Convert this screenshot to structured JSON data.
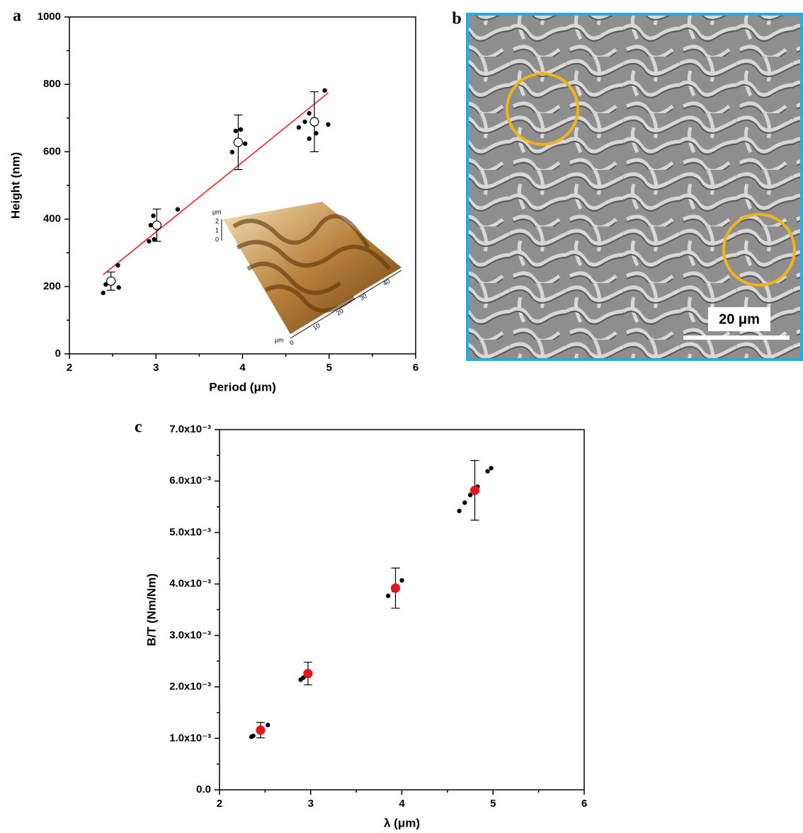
{
  "chart_data": [
    {
      "type": "scatter",
      "panel_label": "a",
      "xlabel": "Period (μm)",
      "ylabel": "Height (nm)",
      "xlim": [
        2,
        6
      ],
      "xticks": [
        2,
        3,
        4,
        5,
        6
      ],
      "ylim": [
        0,
        1000
      ],
      "yticks": [
        0,
        200,
        400,
        600,
        800,
        1000
      ],
      "points": {
        "color": "#000000",
        "x": [
          2.39,
          2.42,
          2.56,
          2.57,
          2.94,
          2.97,
          2.92,
          2.98,
          3.25,
          3.88,
          3.92,
          3.98,
          4.03,
          4.65,
          4.72,
          4.77,
          4.77,
          4.85,
          4.95,
          4.99
        ],
        "y": [
          181,
          206,
          263,
          197,
          382,
          410,
          334,
          340,
          429,
          599,
          662,
          666,
          624,
          672,
          689,
          714,
          639,
          655,
          782,
          681
        ]
      },
      "means": {
        "fill": "#ffffff",
        "stroke": "#000000",
        "x": [
          2.48,
          3.01,
          3.95,
          4.83
        ],
        "y": [
          216,
          382,
          628,
          689
        ],
        "yerr": [
          27,
          48,
          81,
          89
        ]
      },
      "fit": {
        "color": "#e8141c",
        "x": [
          2.39,
          4.99
        ],
        "y": [
          235,
          775
        ]
      },
      "inset": {
        "unit": "μm",
        "z_ticks": [
          0,
          1,
          2
        ],
        "xy_ticks": [
          0,
          10,
          20,
          30,
          40
        ]
      }
    },
    {
      "type": "scatter",
      "panel_label": "c",
      "xlabel": "λ (μm)",
      "ylabel": "B/T (Nm/Nm)",
      "xlim": [
        2,
        6
      ],
      "xticks": [
        2,
        3,
        4,
        5,
        6
      ],
      "ylim": [
        0,
        0.007
      ],
      "yticks": [
        {
          "value": 0,
          "label": "0.0"
        },
        {
          "value": 0.001,
          "label": "1.0x10⁻³"
        },
        {
          "value": 0.002,
          "label": "2.0x10⁻³"
        },
        {
          "value": 0.003,
          "label": "3.0x10⁻³"
        },
        {
          "value": 0.004,
          "label": "4.0x10⁻³"
        },
        {
          "value": 0.005,
          "label": "5.0x10⁻³"
        },
        {
          "value": 0.006,
          "label": "6.0x10⁻³"
        },
        {
          "value": 0.007,
          "label": "7.0x10⁻³"
        }
      ],
      "points": {
        "color": "#000000",
        "x": [
          2.35,
          2.37,
          2.53,
          2.89,
          2.92,
          3.85,
          3.91,
          4.0,
          4.63,
          4.69,
          4.75,
          4.83,
          4.94,
          4.98
        ],
        "y": [
          0.00103,
          0.00105,
          0.00126,
          0.00214,
          0.00218,
          0.00377,
          0.00388,
          0.00407,
          0.00542,
          0.00558,
          0.00573,
          0.00589,
          0.00619,
          0.00625
        ]
      },
      "means": {
        "fill": "#e8141c",
        "stroke": "#e8141c",
        "x": [
          2.45,
          2.97,
          3.93,
          4.8
        ],
        "y": [
          0.00116,
          0.00226,
          0.00392,
          0.00582
        ],
        "yerr": [
          0.00015,
          0.00022,
          0.00039,
          0.00058
        ]
      }
    }
  ],
  "micrograph": {
    "panel_label": "b",
    "scale_bar": "20 μm"
  }
}
